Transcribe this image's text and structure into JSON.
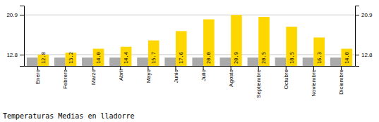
{
  "chart_data": {
    "type": "bar",
    "title": "Temperaturas Medias en lladorre",
    "categories": [
      "Enero",
      "Febrero",
      "Marzo",
      "Abril",
      "Mayo",
      "Junio",
      "Julio",
      "Agosto",
      "Septiembre",
      "Octubre",
      "Noviembre",
      "Diciembre"
    ],
    "series": [
      {
        "color": "#AAAAAA",
        "values": [
          12.2,
          12.2,
          12.2,
          12.2,
          12.2,
          12.2,
          12.2,
          12.2,
          12.2,
          12.2,
          12.2,
          12.2
        ]
      },
      {
        "color": "#FFD700",
        "values": [
          12.8,
          13.2,
          14.0,
          14.4,
          15.7,
          17.6,
          20.0,
          20.9,
          20.5,
          18.5,
          16.3,
          14.0
        ],
        "value_labels": [
          "12.8",
          "13.2",
          "14.0",
          "14.4",
          "15.7",
          "17.6",
          "20.0",
          "20.9",
          "20.5",
          "18.5",
          "16.3",
          "14.0"
        ],
        "data_labels": true
      }
    ],
    "ylim": [
      10.5,
      22.8
    ],
    "yticks": [
      12.8,
      20.9
    ],
    "grid": true
  }
}
